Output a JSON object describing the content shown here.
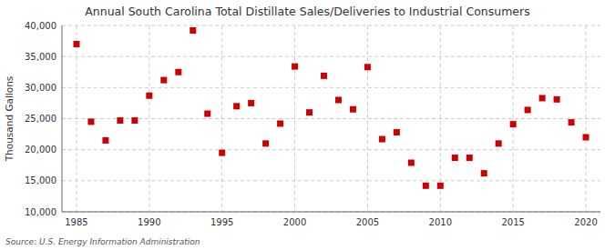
{
  "chart_data": {
    "type": "scatter",
    "title": "Annual South Carolina Total Distillate Sales/Deliveries to Industrial Consumers",
    "ylabel": "Thousand Gallons",
    "source": "Source: U.S. Energy Information Administration",
    "color": "#cc0000",
    "marker": "square",
    "grid": true,
    "xlim": [
      1984,
      2021
    ],
    "ylim": [
      10000,
      40000
    ],
    "xticks": [
      1985,
      1990,
      1995,
      2000,
      2005,
      2010,
      2015,
      2020
    ],
    "yticks": [
      {
        "value": 10000,
        "label": "10,000"
      },
      {
        "value": 15000,
        "label": "15,000"
      },
      {
        "value": 20000,
        "label": "20,000"
      },
      {
        "value": 25000,
        "label": "25,000"
      },
      {
        "value": 30000,
        "label": "30,000"
      },
      {
        "value": 35000,
        "label": "35,000"
      },
      {
        "value": 40000,
        "label": "40,000"
      }
    ],
    "x": [
      1985,
      1986,
      1987,
      1988,
      1989,
      1990,
      1991,
      1992,
      1993,
      1994,
      1995,
      1996,
      1997,
      1998,
      1999,
      2000,
      2001,
      2002,
      2003,
      2004,
      2005,
      2006,
      2007,
      2008,
      2009,
      2010,
      2011,
      2012,
      2013,
      2014,
      2015,
      2016,
      2017,
      2018,
      2019,
      2020
    ],
    "values": [
      37000,
      24500,
      21500,
      24700,
      24700,
      28700,
      31200,
      32500,
      39200,
      25800,
      19500,
      27000,
      27500,
      21000,
      24200,
      33400,
      26000,
      31900,
      28000,
      26500,
      33300,
      21700,
      22800,
      17900,
      14200,
      14200,
      18700,
      18700,
      16200,
      21000,
      24100,
      26400,
      28300,
      28100,
      24400,
      22000
    ]
  }
}
